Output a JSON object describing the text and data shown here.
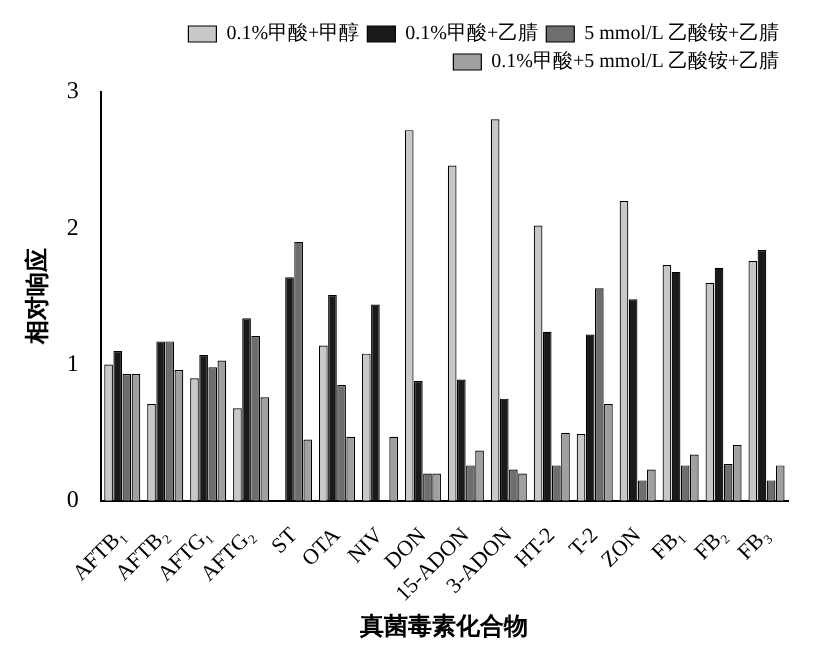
{
  "chart_data": {
    "type": "bar",
    "xlabel": "真菌毒素化合物",
    "ylabel": "相对响应",
    "categories": [
      "AFTB₁",
      "AFTB₂",
      "AFTG₁",
      "AFTG₂",
      "ST",
      "OTA",
      "NIV",
      "DON",
      "15-ADON",
      "3-ADON",
      "HT-2",
      "T-2",
      "ZON",
      "FB₁",
      "FB₂",
      "FB₃"
    ],
    "series": [
      {
        "name": "0.1%甲酸+甲醇",
        "color": "#c8c8c8",
        "values": [
          1.0,
          0.71,
          0.9,
          0.68,
          null,
          1.14,
          1.08,
          2.72,
          2.46,
          2.8,
          2.02,
          0.49,
          2.2,
          1.73,
          1.6,
          1.76
        ]
      },
      {
        "name": "0.1%甲酸+乙腈",
        "color": "#1a1a1a",
        "values": [
          1.1,
          1.17,
          1.07,
          1.34,
          1.64,
          1.51,
          1.44,
          0.88,
          0.89,
          0.75,
          1.24,
          1.22,
          1.48,
          1.68,
          1.71,
          1.84
        ]
      },
      {
        "name": "5 mmol/L 乙酸铵+乙腈",
        "color": "#6e6e6e",
        "values": [
          0.93,
          1.17,
          0.98,
          1.21,
          1.9,
          0.85,
          null,
          0.2,
          0.26,
          0.23,
          0.26,
          1.56,
          0.15,
          0.26,
          0.27,
          0.15
        ]
      },
      {
        "name": "0.1%甲酸+5 mmol/L 乙酸铵+乙腈",
        "color": "#a0a0a0",
        "values": [
          0.93,
          0.96,
          1.03,
          0.76,
          0.45,
          0.47,
          0.47,
          0.2,
          0.37,
          0.2,
          0.5,
          0.71,
          0.23,
          0.34,
          0.41,
          0.26
        ]
      }
    ],
    "ylim": [
      0,
      3
    ],
    "yticks": [
      0,
      1,
      2,
      3
    ],
    "grid": false,
    "legend": "top right"
  }
}
